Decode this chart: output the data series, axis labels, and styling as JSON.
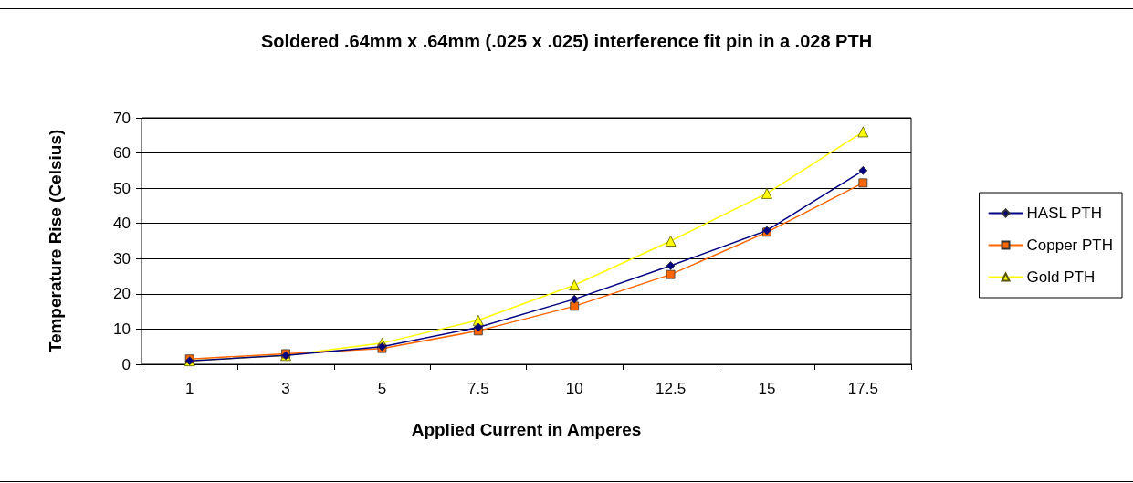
{
  "chart_data": {
    "type": "line",
    "title": "Soldered .64mm x .64mm (.025 x .025) interference fit pin in a .028 PTH",
    "xlabel": "Applied Current in Amperes",
    "ylabel": "Temperature Rise (Celsius)",
    "categories": [
      "1",
      "3",
      "5",
      "7.5",
      "10",
      "12.5",
      "15",
      "17.5"
    ],
    "series": [
      {
        "name": "HASL PTH",
        "color": "#000080",
        "marker": "diamond",
        "values": [
          1,
          2.5,
          5,
          10.5,
          18.5,
          28,
          38,
          55
        ]
      },
      {
        "name": "Copper PTH",
        "color": "#ff6600",
        "marker": "square",
        "values": [
          1.5,
          3,
          4.5,
          9.5,
          16.5,
          25.5,
          37.5,
          51.5
        ]
      },
      {
        "name": "Gold PTH",
        "color": "#ffff00",
        "marker": "triangle",
        "values": [
          1,
          2.5,
          6,
          12.5,
          22.5,
          35,
          48.5,
          66
        ]
      }
    ],
    "ylim": [
      0,
      70
    ],
    "yticks": [
      0,
      10,
      20,
      30,
      40,
      50,
      60,
      70
    ],
    "grid": "y",
    "legend": "right",
    "line_style": "solid"
  }
}
